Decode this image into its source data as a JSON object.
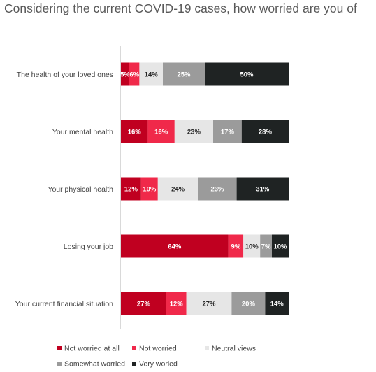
{
  "chart_data": {
    "type": "bar",
    "orientation": "horizontal",
    "stacked": true,
    "title": "Considering the current COVID-19 cases, how worried are you of",
    "xlabel": "",
    "ylabel": "",
    "xlim": [
      0,
      100
    ],
    "grid": false,
    "legend_position": "bottom",
    "categories": [
      "The health of your loved ones",
      "Your mental health",
      "Your physical health",
      "Losing your job",
      "Your current financial situation"
    ],
    "series": [
      {
        "name": "Not worried at all",
        "color": "#c00020",
        "label_color": "#ffffff",
        "values": [
          5,
          16,
          12,
          64,
          27
        ]
      },
      {
        "name": "Not worried",
        "color": "#f0294a",
        "label_color": "#ffffff",
        "values": [
          6,
          16,
          10,
          9,
          12
        ]
      },
      {
        "name": "Neutral views",
        "color": "#e6e6e6",
        "label_color": "#262626",
        "values": [
          14,
          23,
          24,
          10,
          27
        ]
      },
      {
        "name": "Somewhat worried",
        "color": "#9b9b9b",
        "label_color": "#ffffff",
        "values": [
          25,
          17,
          23,
          7,
          20
        ]
      },
      {
        "name": "Very woried",
        "color": "#1f2323",
        "label_color": "#ffffff",
        "values": [
          50,
          28,
          31,
          10,
          14
        ]
      }
    ]
  }
}
